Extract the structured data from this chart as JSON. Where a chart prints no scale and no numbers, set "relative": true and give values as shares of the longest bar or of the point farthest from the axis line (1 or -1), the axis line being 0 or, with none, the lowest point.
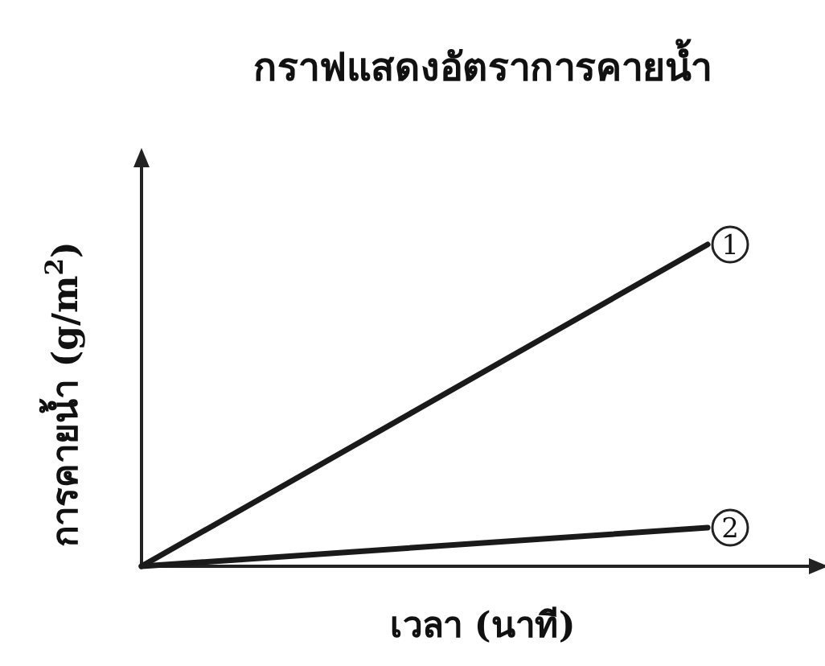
{
  "chart_data": {
    "type": "line",
    "title": "กราฟแสดงอัตราการคายน้ำ",
    "xlabel": "เวลา (นาที)",
    "ylabel": "การคายน้ำ (g/m$^{2}$)",
    "relative": true,
    "categories": [
      null,
      null
    ],
    "series": [
      {
        "name": "1",
        "color": "#1a1a1a",
        "values": [
          0,
          1
        ]
      },
      {
        "name": "2",
        "color": "#1a1a1a",
        "values": [
          0,
          0.12
        ]
      }
    ]
  }
}
